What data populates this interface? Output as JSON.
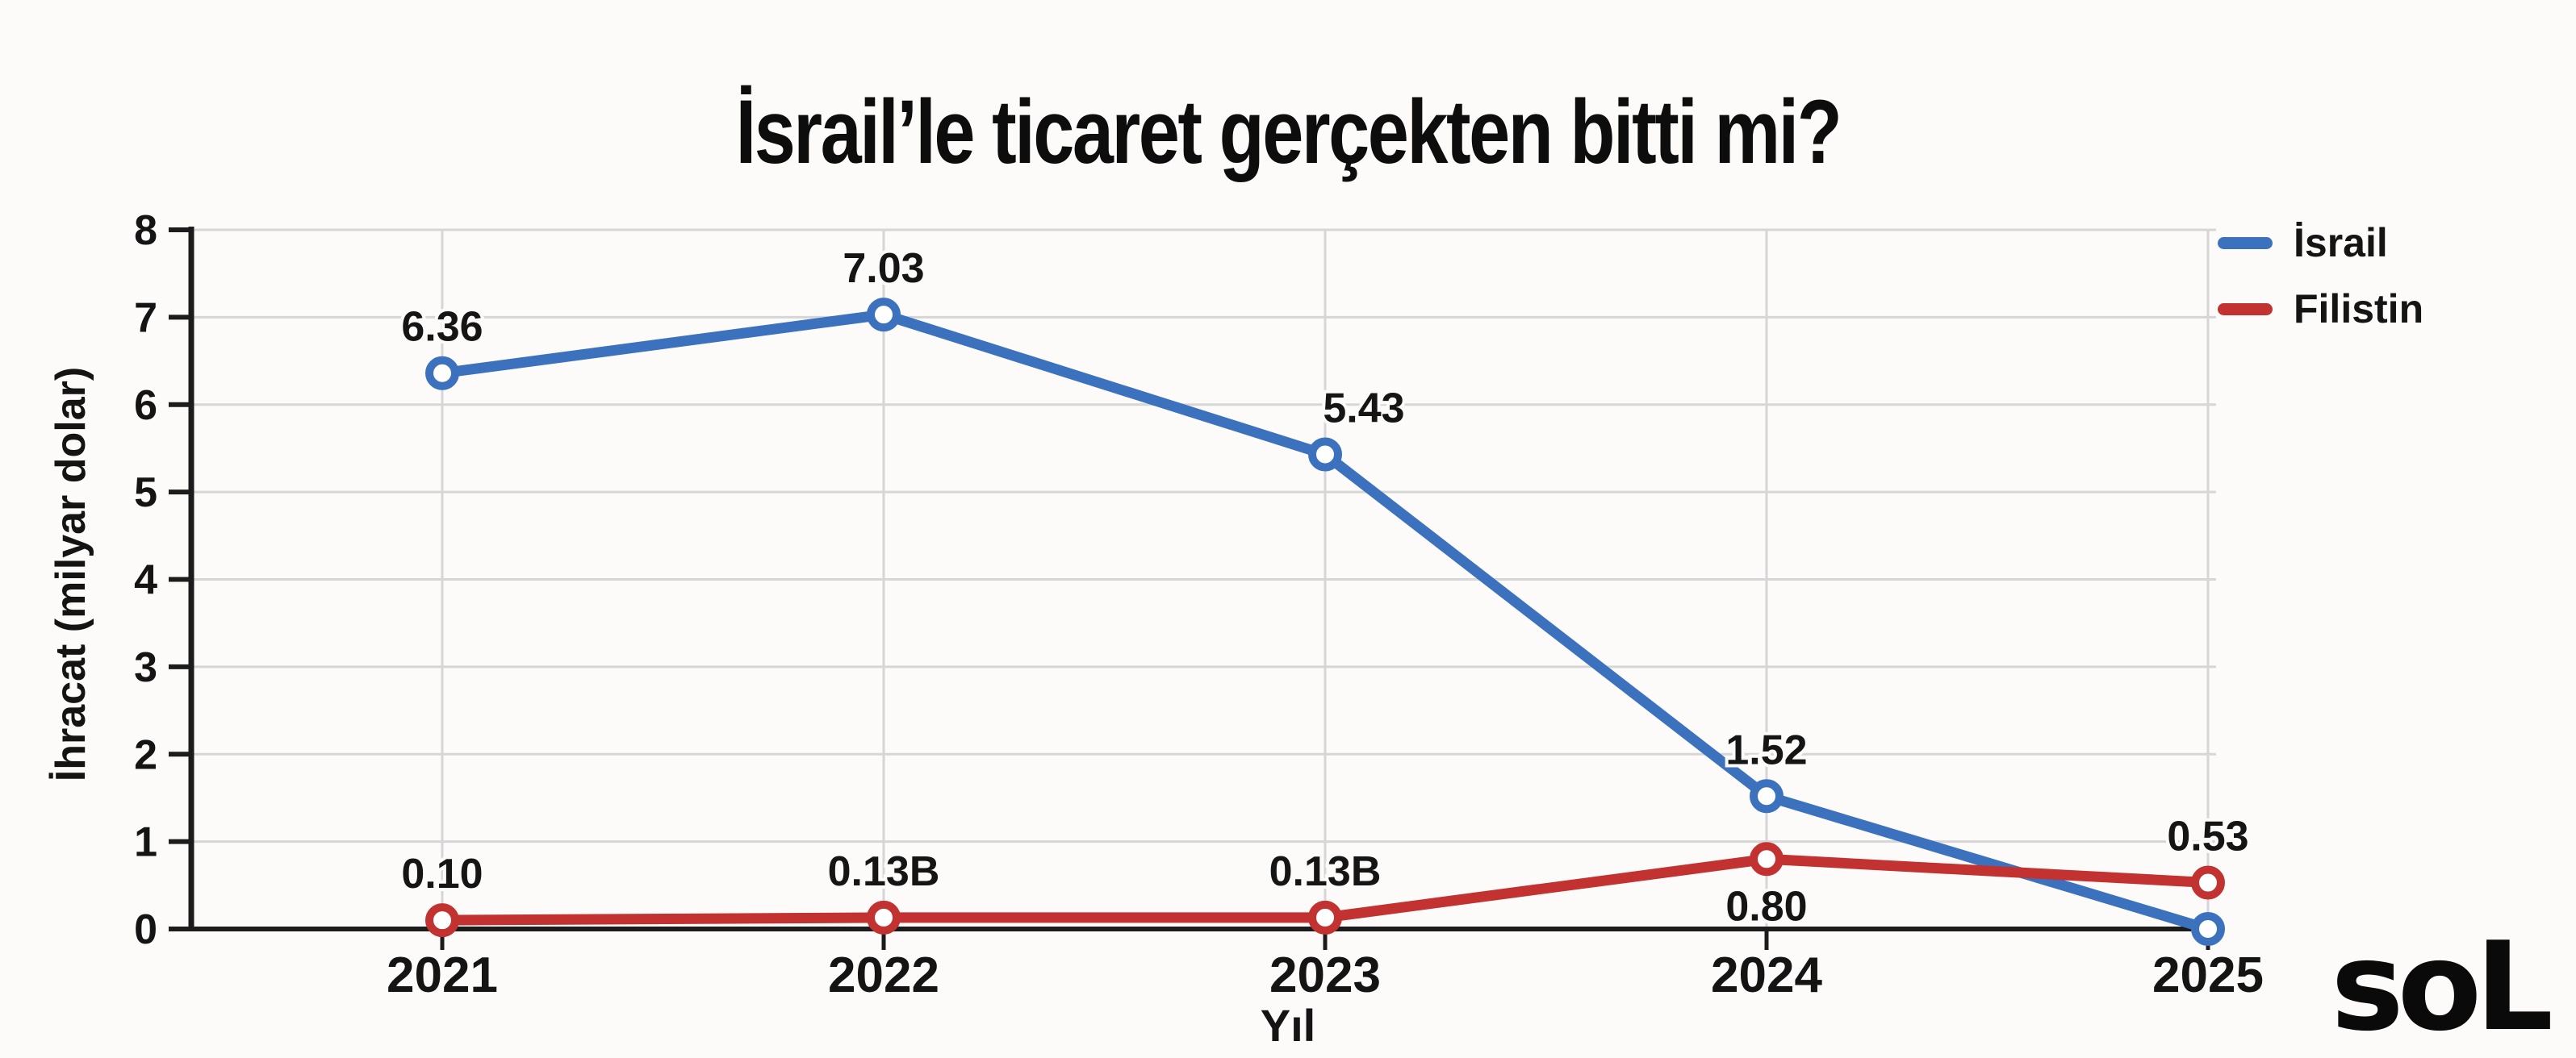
{
  "chart_data": {
    "type": "line",
    "title": "İsrail’le ticaret gerçekten bitti mi?",
    "xlabel": "Yıl",
    "ylabel": "İhracat (milyar dolar)",
    "categories": [
      "2021",
      "2022",
      "2023",
      "2024",
      "2025"
    ],
    "ylim": [
      0,
      8
    ],
    "ytick_step": 1,
    "grid": true,
    "legend_position": "top-right",
    "series": [
      {
        "name": "İsrail",
        "color": "#3C72BD",
        "values": [
          6.36,
          7.03,
          5.43,
          1.52,
          0.0
        ],
        "point_labels": [
          "6.36",
          "7.03",
          "5.43",
          "1.52",
          ""
        ],
        "label_sides": [
          "above",
          "above",
          "above-right",
          "above",
          "none"
        ]
      },
      {
        "name": "Filistin",
        "color": "#C13231",
        "values": [
          0.1,
          0.13,
          0.13,
          0.8,
          0.53
        ],
        "point_labels": [
          "0.10",
          "0.13B",
          "0.13B",
          "0.80",
          "0.53"
        ],
        "label_sides": [
          "above",
          "above",
          "above",
          "below",
          "above"
        ]
      }
    ]
  },
  "footer": {
    "logo_text": "soL"
  },
  "colors": {
    "background": "#fcfbf9",
    "grid": "#d6d6d6",
    "axis": "#1c1c1c",
    "text": "#141414"
  }
}
